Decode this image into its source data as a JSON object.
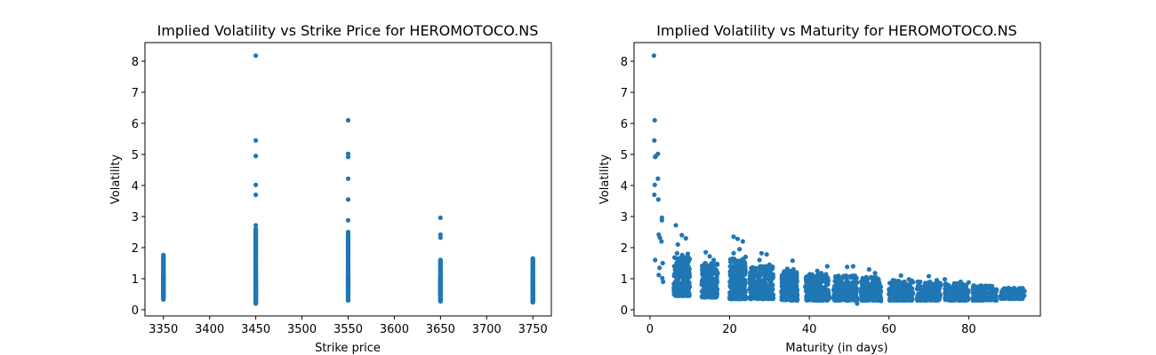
{
  "chart_data": [
    {
      "type": "scatter",
      "title": "Implied Volatility vs Strike Price for HEROMOTOCO.NS",
      "xlabel": "Strike price",
      "ylabel": "Volatility",
      "xlim": [
        3330,
        3770
      ],
      "ylim": [
        -0.2,
        8.6
      ],
      "xticks": [
        3350,
        3400,
        3450,
        3500,
        3550,
        3600,
        3650,
        3700,
        3750
      ],
      "yticks": [
        0,
        1,
        2,
        3,
        4,
        5,
        6,
        7,
        8
      ],
      "color": "#1f77b4",
      "grid": false,
      "series": [
        {
          "x": 3350,
          "min": 0.33,
          "max": 1.76
        },
        {
          "x": 3450,
          "min": 0.2,
          "max": 2.6,
          "outliers": [
            2.72,
            3.7,
            4.02,
            4.95,
            5.45,
            8.18
          ]
        },
        {
          "x": 3550,
          "min": 0.3,
          "max": 2.5,
          "outliers": [
            2.88,
            3.55,
            4.22,
            4.92,
            5.02,
            6.1
          ]
        },
        {
          "x": 3650,
          "min": 0.27,
          "max": 1.6,
          "outliers": [
            2.32,
            2.42,
            2.96
          ]
        },
        {
          "x": 3750,
          "min": 0.24,
          "max": 1.65
        }
      ]
    },
    {
      "type": "scatter",
      "title": "Implied Volatility vs Maturity for HEROMOTOCO.NS",
      "xlabel": "Maturity (in days)",
      "ylabel": "Volatility",
      "xlim": [
        -4,
        98
      ],
      "ylim": [
        -0.2,
        8.6
      ],
      "xticks": [
        0,
        20,
        40,
        60,
        80
      ],
      "yticks": [
        0,
        1,
        2,
        3,
        4,
        5,
        6,
        7,
        8
      ],
      "color": "#1f77b4",
      "grid": false,
      "points": [
        [
          1,
          8.18
        ],
        [
          1.2,
          6.1
        ],
        [
          1.1,
          5.45
        ],
        [
          1.5,
          4.95
        ],
        [
          2,
          5.02
        ],
        [
          1.3,
          4.92
        ],
        [
          1.2,
          4.02
        ],
        [
          2,
          4.22
        ],
        [
          1.1,
          3.7
        ],
        [
          2.1,
          3.55
        ],
        [
          3,
          2.96
        ],
        [
          3,
          2.88
        ],
        [
          2.2,
          2.42
        ],
        [
          2.5,
          2.32
        ],
        [
          1.3,
          1.6
        ],
        [
          2.4,
          1.35
        ],
        [
          2.2,
          1.12
        ],
        [
          3.1,
          1.02
        ],
        [
          3.3,
          0.9
        ],
        [
          2.9,
          2.2
        ],
        [
          3.2,
          1.5
        ],
        [
          6.5,
          2.72
        ],
        [
          8,
          2.4
        ],
        [
          9,
          2.3
        ],
        [
          7,
          2.1
        ],
        [
          6.8,
          1.82
        ],
        [
          8.1,
          1.76
        ],
        [
          9.5,
          1.8
        ],
        [
          7.2,
          1.6
        ],
        [
          8.5,
          1.5
        ],
        [
          6,
          0.7
        ],
        [
          7,
          1.2
        ],
        [
          8.5,
          0.5
        ],
        [
          14,
          1.85
        ],
        [
          15,
          1.72
        ],
        [
          16,
          1.6
        ],
        [
          14.2,
          1.3
        ],
        [
          15.5,
          1.4
        ],
        [
          21,
          2.35
        ],
        [
          22,
          2.28
        ],
        [
          23.3,
          2.2
        ],
        [
          21,
          1.82
        ],
        [
          22.5,
          1.95
        ],
        [
          24,
          1.7
        ],
        [
          28,
          1.82
        ],
        [
          29.3,
          1.78
        ],
        [
          27.5,
          1.6
        ],
        [
          30,
          1.45
        ],
        [
          34.5,
          1.32
        ],
        [
          35.8,
          1.58
        ],
        [
          36,
          1.3
        ],
        [
          42,
          1.25
        ],
        [
          44.5,
          1.4
        ],
        [
          43,
          1.18
        ],
        [
          49.5,
          1.38
        ],
        [
          51,
          1.4
        ],
        [
          52,
          0.2
        ],
        [
          55,
          1.3
        ],
        [
          56.5,
          1.18
        ],
        [
          58,
          0.28
        ],
        [
          61,
          0.95
        ],
        [
          63,
          1.1
        ],
        [
          65,
          0.98
        ],
        [
          70,
          1.08
        ],
        [
          72,
          0.95
        ],
        [
          74,
          0.98
        ],
        [
          78,
          0.9
        ],
        [
          80,
          0.88
        ],
        [
          84,
          0.72
        ],
        [
          87,
          0.65
        ],
        [
          90,
          0.7
        ],
        [
          93,
          0.62
        ],
        [
          94,
          0.6
        ]
      ],
      "clusters": [
        {
          "x_range": [
            6,
            10
          ],
          "y_range": [
            0.45,
            1.7
          ],
          "n": 260
        },
        {
          "x_range": [
            13,
            17
          ],
          "y_range": [
            0.4,
            1.55
          ],
          "n": 240
        },
        {
          "x_range": [
            20,
            24
          ],
          "y_range": [
            0.35,
            1.65
          ],
          "n": 320
        },
        {
          "x_range": [
            25,
            31
          ],
          "y_range": [
            0.35,
            1.4
          ],
          "n": 260
        },
        {
          "x_range": [
            33,
            37
          ],
          "y_range": [
            0.3,
            1.25
          ],
          "n": 240
        },
        {
          "x_range": [
            39,
            45
          ],
          "y_range": [
            0.3,
            1.15
          ],
          "n": 240
        },
        {
          "x_range": [
            46,
            52
          ],
          "y_range": [
            0.3,
            1.1
          ],
          "n": 220
        },
        {
          "x_range": [
            53,
            58
          ],
          "y_range": [
            0.3,
            1.05
          ],
          "n": 200
        },
        {
          "x_range": [
            60,
            66
          ],
          "y_range": [
            0.3,
            0.95
          ],
          "n": 200
        },
        {
          "x_range": [
            67,
            73
          ],
          "y_range": [
            0.3,
            0.9
          ],
          "n": 180
        },
        {
          "x_range": [
            74,
            80
          ],
          "y_range": [
            0.3,
            0.85
          ],
          "n": 170
        },
        {
          "x_range": [
            81,
            87
          ],
          "y_range": [
            0.3,
            0.78
          ],
          "n": 150
        },
        {
          "x_range": [
            88,
            94
          ],
          "y_range": [
            0.35,
            0.7
          ],
          "n": 110
        }
      ]
    }
  ]
}
